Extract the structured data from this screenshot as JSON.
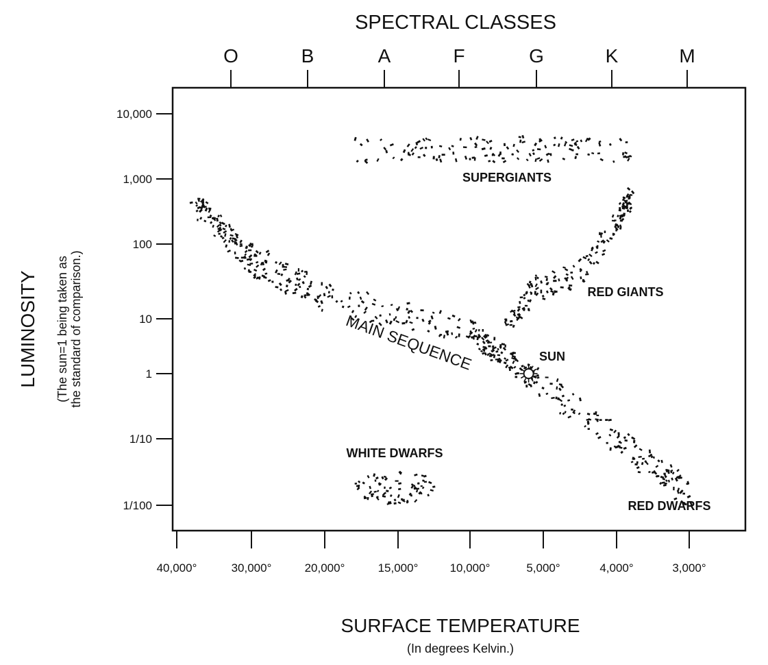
{
  "chart_data": {
    "type": "scatter",
    "title": "SPECTRAL CLASSES",
    "xlabel": "SURFACE TEMPERATURE",
    "xlabel_sub": "(In degrees Kelvin.)",
    "ylabel": "LUMINOSITY",
    "ylabel_sub": [
      "(The sun=1 being taken as",
      "the standard of comparison.)"
    ],
    "x_ticks": [
      {
        "value": 40000,
        "label": "40,000°"
      },
      {
        "value": 30000,
        "label": "30,000°"
      },
      {
        "value": 20000,
        "label": "20,000°"
      },
      {
        "value": 15000,
        "label": "15,000°"
      },
      {
        "value": 10000,
        "label": "10,000°"
      },
      {
        "value": 5000,
        "label": "5,000°"
      },
      {
        "value": 4000,
        "label": "4,000°"
      },
      {
        "value": 3000,
        "label": "3,000°"
      }
    ],
    "x_direction": "decreasing",
    "y_scale": "log",
    "y_ticks": [
      {
        "value": 10000,
        "label": "10,000"
      },
      {
        "value": 1000,
        "label": "1,000"
      },
      {
        "value": 100,
        "label": "100"
      },
      {
        "value": 10,
        "label": "10"
      },
      {
        "value": 1,
        "label": "1"
      },
      {
        "value": 0.1,
        "label": "1/10"
      },
      {
        "value": 0.01,
        "label": "1/100"
      }
    ],
    "spectral_classes": [
      "O",
      "B",
      "A",
      "F",
      "G",
      "K",
      "M"
    ],
    "grid": false,
    "groups": [
      {
        "name": "SUPERGIANTS",
        "kind": "box",
        "temp_range": [
          18000,
          3800
        ],
        "lum_range": [
          1800,
          4500
        ],
        "count": 130
      },
      {
        "name": "MAIN SEQUENCE",
        "kind": "band",
        "path": [
          [
            38000,
            450
          ],
          [
            30000,
            60
          ],
          [
            20000,
            20
          ],
          [
            10000,
            6
          ],
          [
            6000,
            1
          ],
          [
            4000,
            0.1
          ],
          [
            3000,
            0.015
          ]
        ],
        "spread_dex": 0.22,
        "count": 480
      },
      {
        "name": "RED GIANTS",
        "kind": "band",
        "path": [
          [
            7500,
            8
          ],
          [
            5500,
            25
          ],
          [
            4500,
            40
          ],
          [
            4000,
            200
          ],
          [
            3800,
            550
          ]
        ],
        "spread_dex": 0.17,
        "count": 170
      },
      {
        "name": "WHITE DWARFS",
        "kind": "box",
        "temp_range": [
          18000,
          12500
        ],
        "lum_range": [
          0.01,
          0.035
        ],
        "count": 75
      }
    ],
    "labels": {
      "supergiants": "SUPERGIANTS",
      "red_giants": "RED GIANTS",
      "main_sequence": "MAIN SEQUENCE",
      "sun": "SUN",
      "white_dwarfs": "WHITE DWARFS",
      "red_dwarfs": "RED DWARFS"
    },
    "sun": {
      "temp": 6000,
      "lum": 1
    },
    "color": "#111111"
  }
}
